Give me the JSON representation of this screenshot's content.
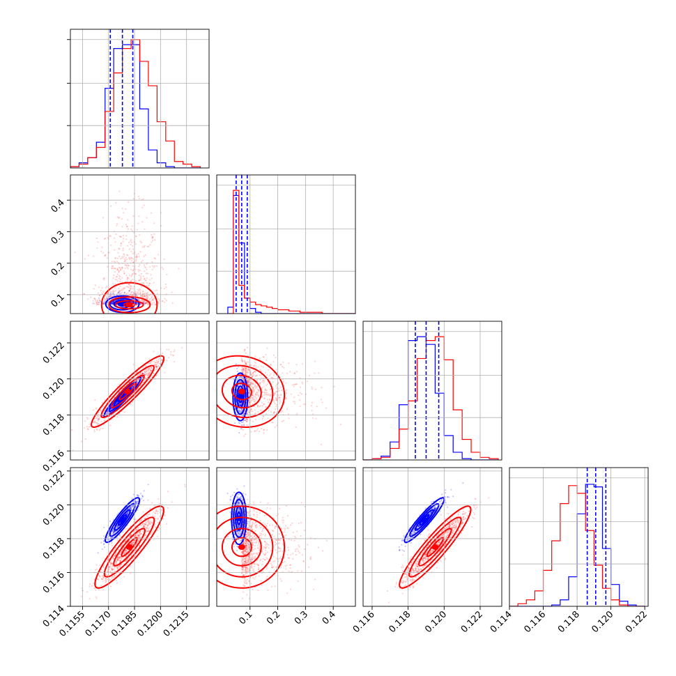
{
  "chart_data": {
    "type": "corner",
    "panels": [
      {
        "name": "hist-param-1",
        "type": "histogram",
        "xlim": [
          0.1148,
          0.1228
        ],
        "bins": [
          0.1148,
          0.1153,
          0.1158,
          0.1163,
          0.1168,
          0.1173,
          0.1178,
          0.1183,
          0.1188,
          0.1193,
          0.1198,
          0.1203,
          0.1208,
          0.1213,
          0.1218,
          0.1223
        ],
        "series": [
          {
            "color": "#0000ff",
            "counts": [
              0.01,
              0.04,
              0.08,
              0.2,
              0.62,
              0.93,
              0.96,
              0.96,
              0.46,
              0.14,
              0.04,
              0.01,
              0.0,
              0.0,
              0.0
            ]
          },
          {
            "color": "#ff0000",
            "counts": [
              0.01,
              0.03,
              0.08,
              0.16,
              0.44,
              0.74,
              0.93,
              1.0,
              0.83,
              0.64,
              0.36,
              0.21,
              0.05,
              0.03,
              0.01
            ]
          }
        ],
        "quantiles": [
          0.1171,
          0.1178,
          0.1184
        ]
      },
      {
        "name": "hist-param-2",
        "type": "histogram",
        "xlim": [
          -0.02,
          0.48
        ],
        "bins": [
          0.02,
          0.04,
          0.06,
          0.08,
          0.1,
          0.12,
          0.14,
          0.16,
          0.18,
          0.2,
          0.24,
          0.28,
          0.32,
          0.36,
          0.4,
          0.44,
          0.48
        ],
        "series": [
          {
            "color": "#0000ff",
            "counts": [
              0.05,
              0.92,
              0.55,
              0.12,
              0.04,
              0.01,
              0.0,
              0.0,
              0.0,
              0.0,
              0.0,
              0.0,
              0.0,
              0.0,
              0.0,
              0.0
            ]
          },
          {
            "color": "#ff0000",
            "counts": [
              0.0,
              0.96,
              0.22,
              0.12,
              0.09,
              0.07,
              0.06,
              0.05,
              0.04,
              0.03,
              0.02,
              0.01,
              0.01,
              0.0,
              0.0,
              0.0
            ]
          }
        ],
        "quantiles": [
          0.05,
          0.07,
          0.09
        ]
      },
      {
        "name": "hist-param-3",
        "type": "histogram",
        "xlim": [
          0.1155,
          0.1232
        ],
        "bins": [
          0.1155,
          0.116,
          0.1165,
          0.117,
          0.1175,
          0.118,
          0.1185,
          0.119,
          0.1195,
          0.12,
          0.1205,
          0.121,
          0.1215,
          0.122,
          0.1225,
          0.123
        ],
        "series": [
          {
            "color": "#0000ff",
            "counts": [
              0.0,
              0.01,
              0.03,
              0.14,
              0.43,
              0.93,
              0.96,
              0.9,
              0.52,
              0.19,
              0.06,
              0.01,
              0.0,
              0.0,
              0.0
            ]
          },
          {
            "color": "#ff0000",
            "counts": [
              0.0,
              0.01,
              0.02,
              0.09,
              0.24,
              0.46,
              0.79,
              0.93,
              0.96,
              0.78,
              0.39,
              0.16,
              0.06,
              0.02,
              0.01
            ]
          }
        ],
        "quantiles": [
          0.1184,
          0.119,
          0.1197
        ]
      },
      {
        "name": "hist-param-4",
        "type": "histogram",
        "xlim": [
          0.114,
          0.1222
        ],
        "bins": [
          0.114,
          0.1145,
          0.115,
          0.1155,
          0.116,
          0.1165,
          0.117,
          0.1175,
          0.118,
          0.1185,
          0.119,
          0.1195,
          0.12,
          0.1205,
          0.121,
          0.1215,
          0.122
        ],
        "series": [
          {
            "color": "#0000ff",
            "counts": [
              0.0,
              0.0,
              0.0,
              0.0,
              0.0,
              0.01,
              0.05,
              0.23,
              0.72,
              0.95,
              0.93,
              0.45,
              0.17,
              0.04,
              0.01,
              0.0
            ]
          },
          {
            "color": "#ff0000",
            "counts": [
              0.0,
              0.02,
              0.05,
              0.12,
              0.28,
              0.51,
              0.8,
              0.94,
              0.88,
              0.59,
              0.32,
              0.14,
              0.05,
              0.01,
              0.0,
              0.0
            ]
          }
        ],
        "quantiles": [
          0.1186,
          0.1191,
          0.1197
        ]
      },
      {
        "name": "scatter-p2-vs-p1",
        "type": "scatter",
        "xlim": [
          0.1148,
          0.1228
        ],
        "ylim": [
          0.04,
          0.48
        ],
        "series": [
          {
            "color": "#0000ff",
            "center": [
              0.1178,
              0.07
            ],
            "sd": [
              0.00045,
              0.012
            ],
            "corr": 0.0,
            "contours": [
              [
                0.00024,
                0.006
              ],
              [
                0.00048,
                0.012
              ],
              [
                0.00072,
                0.018
              ],
              [
                0.00096,
                0.026
              ]
            ]
          },
          {
            "color": "#ff0000",
            "center": [
              0.1182,
              0.068
            ],
            "sd": [
              0.0009,
              0.08
            ],
            "corr": 0.0,
            "contours": [
              [
                0.00032,
                0.006
              ],
              [
                0.0008,
                0.013
              ],
              [
                0.0012,
                0.025
              ],
              [
                0.0016,
                0.07
              ]
            ]
          }
        ]
      },
      {
        "name": "scatter-p3-vs-p1",
        "type": "scatter",
        "xlim": [
          0.1148,
          0.1228
        ],
        "ylim": [
          0.1155,
          0.1232
        ],
        "series": [
          {
            "color": "#0000ff",
            "center": [
              0.1178,
              0.119
            ],
            "sd": [
              0.00048,
              0.0005
            ],
            "corr": 0.95,
            "contours": [
              [
                0.5
              ],
              [
                1.0
              ],
              [
                1.6
              ],
              [
                2.2
              ]
            ]
          },
          {
            "color": "#ff0000",
            "center": [
              0.1181,
              0.1193
            ],
            "sd": [
              0.00095,
              0.0009
            ],
            "corr": 0.93,
            "contours": [
              [
                0.5
              ],
              [
                1.0
              ],
              [
                1.6
              ],
              [
                2.2
              ]
            ]
          }
        ]
      },
      {
        "name": "scatter-p3-vs-p2",
        "type": "scatter",
        "xlim": [
          -0.02,
          0.48
        ],
        "ylim": [
          0.1155,
          0.1232
        ],
        "series": [
          {
            "color": "#0000ff",
            "center": [
              0.065,
              0.119
            ],
            "sd": [
              0.012,
              0.0006
            ],
            "corr": 0.0,
            "contours": [
              [
                0.5
              ],
              [
                1.0
              ],
              [
                1.6
              ],
              [
                2.2
              ]
            ]
          },
          {
            "color": "#ff0000",
            "center": [
              0.07,
              0.1193
            ],
            "sd": [
              0.07,
              0.0009
            ],
            "corr": -0.1,
            "contours": [
              [
                0.5
              ],
              [
                1.0
              ],
              [
                1.6
              ],
              [
                2.2
              ]
            ]
          }
        ]
      },
      {
        "name": "scatter-p4-vs-p1",
        "type": "scatter",
        "xlim": [
          0.1148,
          0.1228
        ],
        "ylim": [
          0.114,
          0.1222
        ],
        "series": [
          {
            "color": "#0000ff",
            "center": [
              0.1178,
              0.1191
            ],
            "sd": [
              0.00045,
              0.0006
            ],
            "corr": 0.9,
            "contours": [
              [
                0.5
              ],
              [
                1.0
              ],
              [
                1.6
              ],
              [
                2.2
              ]
            ]
          },
          {
            "color": "#ff0000",
            "center": [
              0.1182,
              0.1175
            ],
            "sd": [
              0.0009,
              0.0011
            ],
            "corr": 0.9,
            "contours": [
              [
                0.5
              ],
              [
                1.0
              ],
              [
                1.6
              ],
              [
                2.2
              ]
            ]
          }
        ]
      },
      {
        "name": "scatter-p4-vs-p2",
        "type": "scatter",
        "xlim": [
          -0.02,
          0.48
        ],
        "ylim": [
          0.114,
          0.1222
        ],
        "series": [
          {
            "color": "#0000ff",
            "center": [
              0.06,
              0.1192
            ],
            "sd": [
              0.012,
              0.0007
            ],
            "corr": 0.0,
            "contours": [
              [
                0.5
              ],
              [
                1.0
              ],
              [
                1.6
              ],
              [
                2.2
              ]
            ]
          },
          {
            "color": "#ff0000",
            "center": [
              0.07,
              0.1175
            ],
            "sd": [
              0.07,
              0.0011
            ],
            "corr": 0.0,
            "contours": [
              [
                0.5
              ],
              [
                1.0
              ],
              [
                1.6
              ],
              [
                2.2
              ]
            ]
          }
        ]
      },
      {
        "name": "scatter-p4-vs-p3",
        "type": "scatter",
        "xlim": [
          0.1155,
          0.1232
        ],
        "ylim": [
          0.114,
          0.1222
        ],
        "series": [
          {
            "color": "#0000ff",
            "center": [
              0.1189,
              0.1191
            ],
            "sd": [
              0.0005,
              0.0006
            ],
            "corr": 0.93,
            "contours": [
              [
                0.5
              ],
              [
                1.0
              ],
              [
                1.6
              ],
              [
                2.2
              ]
            ]
          },
          {
            "color": "#ff0000",
            "center": [
              0.1195,
              0.1175
            ],
            "sd": [
              0.0009,
              0.0011
            ],
            "corr": 0.92,
            "contours": [
              [
                0.5
              ],
              [
                1.0
              ],
              [
                1.6
              ],
              [
                2.2
              ]
            ]
          }
        ]
      }
    ],
    "tick_labels": {
      "bottom_col1": [
        "0.1155",
        "0.1170",
        "0.1185",
        "0.1200",
        "0.1215"
      ],
      "bottom_col2": [
        "0.1",
        "0.2",
        "0.3",
        "0.4"
      ],
      "bottom_col3": [
        "0.116",
        "0.118",
        "0.120",
        "0.122"
      ],
      "bottom_col4": [
        "0.114",
        "0.116",
        "0.118",
        "0.120",
        "0.122"
      ],
      "left_row2": [
        "0.1",
        "0.2",
        "0.3",
        "0.4"
      ],
      "left_row3": [
        "0.116",
        "0.118",
        "0.120",
        "0.122"
      ],
      "left_row4": [
        "0.114",
        "0.116",
        "0.118",
        "0.120",
        "0.122"
      ]
    },
    "tick_values": {
      "bottom_col1": [
        0.1155,
        0.117,
        0.1185,
        0.12,
        0.1215
      ],
      "bottom_col2": [
        0.1,
        0.2,
        0.3,
        0.4
      ],
      "bottom_col3": [
        0.116,
        0.118,
        0.12,
        0.122
      ],
      "bottom_col4": [
        0.114,
        0.116,
        0.118,
        0.12,
        0.122
      ],
      "left_row2": [
        0.1,
        0.2,
        0.3,
        0.4
      ],
      "left_row3": [
        0.116,
        0.118,
        0.12,
        0.122
      ],
      "left_row4": [
        0.114,
        0.116,
        0.118,
        0.12,
        0.122
      ]
    },
    "grid": true,
    "colors": {
      "series_a": "#0000ff",
      "series_b": "#ff0000"
    }
  }
}
